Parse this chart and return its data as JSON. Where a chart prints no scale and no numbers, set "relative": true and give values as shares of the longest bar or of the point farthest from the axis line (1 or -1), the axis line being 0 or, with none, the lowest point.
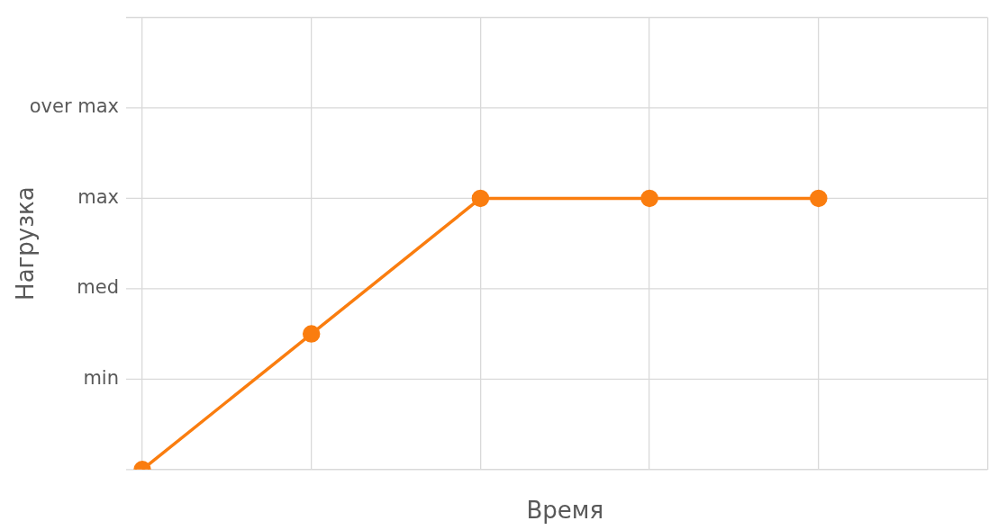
{
  "chart_data": {
    "type": "line",
    "xlabel": "Время",
    "ylabel": "Нагрузка",
    "relative": true,
    "categories": [
      null,
      null,
      null,
      null,
      null,
      null
    ],
    "series": [
      {
        "color": "#fa7d0f",
        "values": [
          0,
          0.5,
          1,
          1,
          1,
          null
        ]
      }
    ],
    "annotations": [
      "min",
      "med",
      "max",
      "over max"
    ],
    "grid": true,
    "marker": "circle",
    "line_style": "solid",
    "legend": false
  }
}
